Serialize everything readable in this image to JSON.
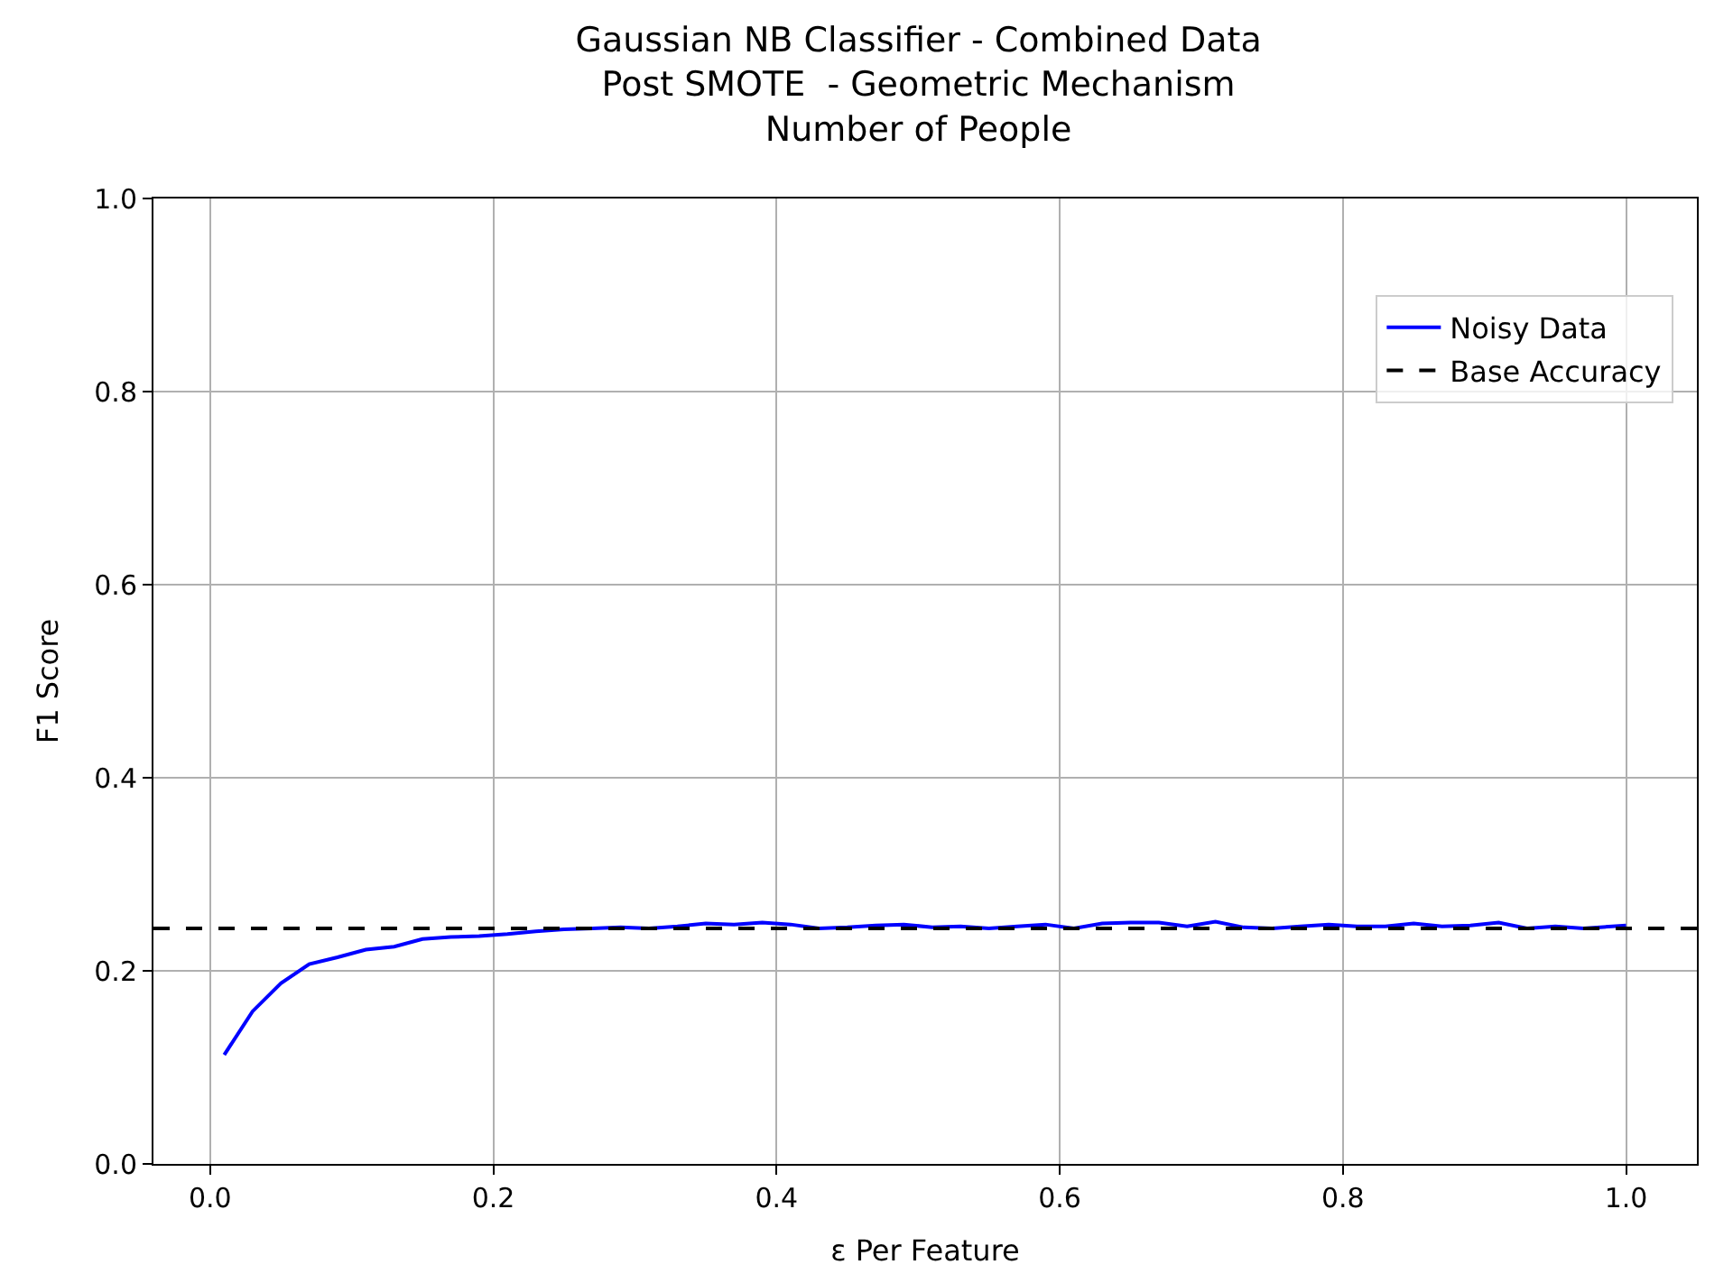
{
  "chart_data": {
    "type": "line",
    "title": "Gaussian NB Classifier - Combined Data\nPost SMOTE  - Geometric Mechanism\nNumber of People",
    "xlabel": "ε Per Feature",
    "ylabel": "F1 Score",
    "xlim": [
      -0.04,
      1.05
    ],
    "ylim": [
      0,
      1
    ],
    "xticks": [
      {
        "value": 0,
        "label": "0.0"
      },
      0.2,
      0.4,
      0.6,
      0.8,
      {
        "value": 1,
        "label": "1.0"
      }
    ],
    "yticks": [
      {
        "value": 0,
        "label": "0.0"
      },
      0.2,
      0.4,
      0.6,
      0.8,
      {
        "value": 1,
        "label": "1.0"
      }
    ],
    "x": [
      0.01,
      0.03,
      0.05,
      0.07,
      0.09,
      0.11,
      0.13,
      0.15,
      0.17,
      0.19,
      0.21,
      0.23,
      0.25,
      0.27,
      0.29,
      0.31,
      0.33,
      0.35,
      0.37,
      0.39,
      0.41,
      0.43,
      0.45,
      0.47,
      0.49,
      0.51,
      0.53,
      0.55,
      0.57,
      0.59,
      0.61,
      0.63,
      0.65,
      0.67,
      0.69,
      0.71,
      0.73,
      0.75,
      0.77,
      0.79,
      0.81,
      0.83,
      0.85,
      0.87,
      0.89,
      0.91,
      0.93,
      0.95,
      0.97,
      1.0
    ],
    "series": [
      {
        "name": "Noisy Data",
        "color": "#0000ff",
        "line_style": "solid",
        "values": [
          0.113,
          0.158,
          0.187,
          0.207,
          0.214,
          0.222,
          0.225,
          0.233,
          0.235,
          0.236,
          0.238,
          0.241,
          0.243,
          0.244,
          0.245,
          0.244,
          0.246,
          0.249,
          0.248,
          0.25,
          0.248,
          0.244,
          0.245,
          0.247,
          0.248,
          0.245,
          0.246,
          0.244,
          0.246,
          0.248,
          0.244,
          0.249,
          0.25,
          0.25,
          0.246,
          0.251,
          0.245,
          0.244,
          0.246,
          0.248,
          0.246,
          0.246,
          0.249,
          0.246,
          0.247,
          0.25,
          0.244,
          0.246,
          0.244,
          0.247
        ]
      }
    ],
    "ref_lines": [
      {
        "axis": "y",
        "value": 0.244,
        "label": "Base Accuracy",
        "color": "#000000",
        "line_style": "dashed"
      }
    ],
    "grid": true,
    "legend": "top right",
    "marker": "none"
  }
}
